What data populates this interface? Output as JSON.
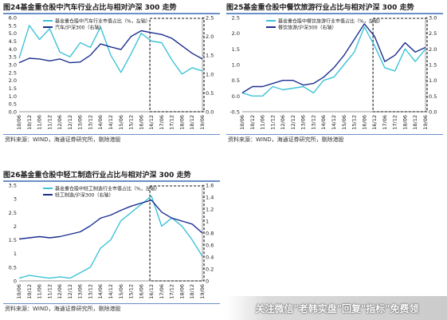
{
  "chart_data": [
    {
      "type": "line",
      "title": "图24基金重仓股中汽车行业占比与相对沪深 300 走势",
      "source": "资料来源：WIND，海通证券研究所，剔除港股",
      "x": [
        "10/06",
        "10/12",
        "11/06",
        "11/12",
        "12/06",
        "12/12",
        "13/06",
        "13/12",
        "14/06",
        "14/12",
        "15/06",
        "15/12",
        "16/06",
        "16/12",
        "17/06",
        "17/12",
        "18/06",
        "18/12",
        "19/06"
      ],
      "yleft": {
        "range": [
          0,
          6
        ],
        "ticks": [
          "0.0",
          "0.5",
          "1.0",
          "1.5",
          "2.0",
          "2.5",
          "3.0",
          "3.5",
          "4.0",
          "4.5",
          "5.0",
          "5.5",
          "6.0"
        ]
      },
      "yright": {
        "range": [
          0,
          2.5
        ],
        "ticks": [
          "0.0",
          "0.5",
          "1.0",
          "1.5",
          "2.0",
          "2.5"
        ]
      },
      "series": [
        {
          "name": "基金重仓股中汽车行业市值占比（%，左轴）",
          "axis": "left",
          "color": "#3ec3d8",
          "values": [
            3.4,
            5.5,
            4.6,
            5.3,
            3.8,
            3.5,
            4.4,
            4.1,
            5.4,
            3.6,
            2.5,
            3.7,
            5.0,
            4.5,
            4.4,
            3.3,
            2.4,
            2.8,
            2.6
          ]
        },
        {
          "name": "汽车/沪深300（右轴）",
          "axis": "right",
          "color": "#1c2f8e",
          "values": [
            1.3,
            1.42,
            1.4,
            1.35,
            1.4,
            1.3,
            1.32,
            1.5,
            1.8,
            1.72,
            1.65,
            2.0,
            2.15,
            2.1,
            2.05,
            1.95,
            1.75,
            1.55,
            1.4
          ]
        }
      ],
      "highlight_box": {
        "from": "16/12",
        "to": "19/06"
      },
      "legend": "top-left"
    },
    {
      "type": "line",
      "title": "图25基金重仓股中餐饮旅游行业占比与相对沪深 300 走势",
      "source": "资料来源：WIND，海通证券研究所，剔除港股",
      "x": [
        "10/06",
        "10/12",
        "11/06",
        "11/12",
        "12/06",
        "12/12",
        "13/06",
        "13/12",
        "14/06",
        "14/12",
        "15/06",
        "15/12",
        "16/06",
        "16/12",
        "17/06",
        "17/12",
        "18/06",
        "18/12",
        "19/06"
      ],
      "yleft": {
        "range": [
          -0.5,
          2.5
        ],
        "ticks": [
          "-0.5",
          "0.0",
          "0.5",
          "1.0",
          "1.5",
          "2.0",
          "2.5"
        ]
      },
      "yright": {
        "range": [
          0,
          3.0
        ],
        "ticks": [
          "0.0",
          "0.5",
          "1.0",
          "1.5",
          "2.0",
          "2.5",
          "3.0"
        ]
      },
      "series": [
        {
          "name": "基金重仓股中餐饮旅游行业市值占比（%，左轴）",
          "axis": "left",
          "color": "#3ec3d8",
          "values": [
            0.1,
            0.0,
            0.0,
            0.3,
            0.2,
            0.25,
            0.3,
            0.1,
            0.5,
            0.6,
            1.0,
            1.4,
            2.2,
            1.6,
            0.9,
            0.8,
            1.5,
            1.1,
            1.5
          ]
        },
        {
          "name": "餐饮旅游/沪深300（右轴）",
          "axis": "right",
          "color": "#1c2f8e",
          "values": [
            0.6,
            0.8,
            0.8,
            0.9,
            1.0,
            1.0,
            0.85,
            0.9,
            1.1,
            1.4,
            1.8,
            2.3,
            2.8,
            2.4,
            1.6,
            1.8,
            2.2,
            1.9,
            2.05
          ]
        }
      ],
      "highlight_box": {
        "from": "16/12",
        "to": "19/06"
      },
      "legend": "top-left"
    },
    {
      "type": "line",
      "title": "图26基金重仓股中轻工制造行业占比与相对沪深 300 走势",
      "source": "资料来源：WIND，海通证券研究所，剔除港股",
      "x": [
        "10/06",
        "10/12",
        "11/06",
        "11/12",
        "12/06",
        "12/12",
        "13/06",
        "13/12",
        "14/06",
        "14/12",
        "15/06",
        "15/12",
        "16/06",
        "16/12",
        "17/06",
        "17/12",
        "18/06",
        "18/12",
        "19/06"
      ],
      "yleft": {
        "range": [
          0,
          3.5
        ],
        "ticks": [
          "0",
          "0.5",
          "1",
          "1.5",
          "2",
          "2.5",
          "3",
          "3.5"
        ]
      },
      "yright": {
        "range": [
          0,
          1.6
        ],
        "ticks": [
          "0",
          "0.2",
          "0.4",
          "0.6",
          "0.8",
          "1",
          "1.2",
          "1.4",
          "1.6"
        ]
      },
      "series": [
        {
          "name": "基金重仓股中轻工制造行业市值占比（%，左轴）",
          "axis": "left",
          "color": "#3ec3d8",
          "values": [
            0.1,
            0.2,
            0.15,
            0.1,
            0.15,
            0.1,
            0.3,
            0.5,
            1.2,
            1.5,
            2.2,
            2.5,
            2.8,
            3.1,
            2.0,
            2.3,
            2.0,
            1.5,
            0.9
          ]
        },
        {
          "name": "轻工制造/沪深300（右轴）",
          "axis": "right",
          "color": "#1c2f8e",
          "values": [
            0.7,
            0.72,
            0.74,
            0.72,
            0.74,
            0.78,
            0.82,
            0.92,
            1.05,
            1.1,
            1.18,
            1.25,
            1.3,
            1.35,
            1.15,
            1.05,
            1.0,
            0.95,
            0.8
          ]
        }
      ],
      "highlight_box": {
        "from": "16/12",
        "to": "19/06"
      },
      "legend": "top-left"
    }
  ],
  "watermark": "关注微信\"老韩实盘\"回复\"指标\"免费领"
}
